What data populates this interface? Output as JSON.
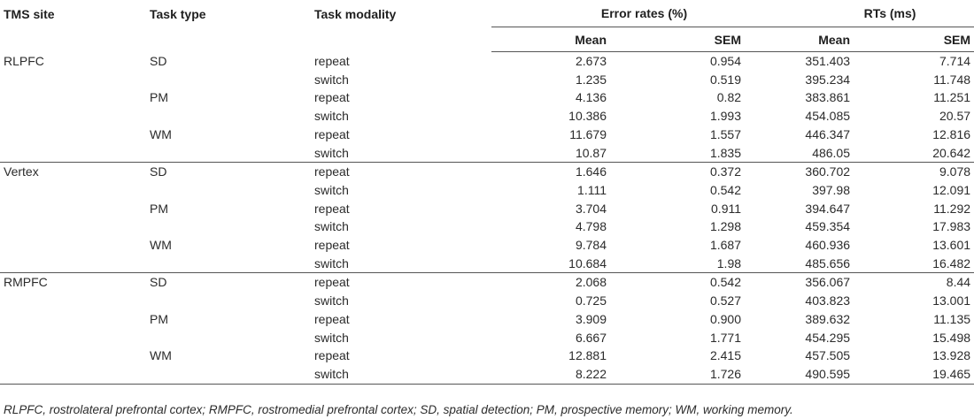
{
  "headers": {
    "tms_site": "TMS site",
    "task_type": "Task type",
    "task_modality": "Task modality",
    "error_rates": "Error rates (%)",
    "rts": "RTs (ms)",
    "mean": "Mean",
    "sem": "SEM"
  },
  "rows": [
    {
      "site": "RLPFC",
      "type": "SD",
      "modality": "repeat",
      "err_mean": "2.673",
      "err_sem": "0.954",
      "rt_mean": "351.403",
      "rt_sem": "7.714"
    },
    {
      "site": "",
      "type": "",
      "modality": "switch",
      "err_mean": "1.235",
      "err_sem": "0.519",
      "rt_mean": "395.234",
      "rt_sem": "11.748"
    },
    {
      "site": "",
      "type": "PM",
      "modality": "repeat",
      "err_mean": "4.136",
      "err_sem": "0.82",
      "rt_mean": "383.861",
      "rt_sem": "11.251"
    },
    {
      "site": "",
      "type": "",
      "modality": "switch",
      "err_mean": "10.386",
      "err_sem": "1.993",
      "rt_mean": "454.085",
      "rt_sem": "20.57"
    },
    {
      "site": "",
      "type": "WM",
      "modality": "repeat",
      "err_mean": "11.679",
      "err_sem": "1.557",
      "rt_mean": "446.347",
      "rt_sem": "12.816"
    },
    {
      "site": "",
      "type": "",
      "modality": "switch",
      "err_mean": "10.87",
      "err_sem": "1.835",
      "rt_mean": "486.05",
      "rt_sem": "20.642"
    },
    {
      "site": "Vertex",
      "type": "SD",
      "modality": "repeat",
      "err_mean": "1.646",
      "err_sem": "0.372",
      "rt_mean": "360.702",
      "rt_sem": "9.078"
    },
    {
      "site": "",
      "type": "",
      "modality": "switch",
      "err_mean": "1.111",
      "err_sem": "0.542",
      "rt_mean": "397.98",
      "rt_sem": "12.091"
    },
    {
      "site": "",
      "type": "PM",
      "modality": "repeat",
      "err_mean": "3.704",
      "err_sem": "0.911",
      "rt_mean": "394.647",
      "rt_sem": "11.292"
    },
    {
      "site": "",
      "type": "",
      "modality": "switch",
      "err_mean": "4.798",
      "err_sem": "1.298",
      "rt_mean": "459.354",
      "rt_sem": "17.983"
    },
    {
      "site": "",
      "type": "WM",
      "modality": "repeat",
      "err_mean": "9.784",
      "err_sem": "1.687",
      "rt_mean": "460.936",
      "rt_sem": "13.601"
    },
    {
      "site": "",
      "type": "",
      "modality": "switch",
      "err_mean": "10.684",
      "err_sem": "1.98",
      "rt_mean": "485.656",
      "rt_sem": "16.482"
    },
    {
      "site": "RMPFC",
      "type": "SD",
      "modality": "repeat",
      "err_mean": "2.068",
      "err_sem": "0.542",
      "rt_mean": "356.067",
      "rt_sem": "8.44"
    },
    {
      "site": "",
      "type": "",
      "modality": "switch",
      "err_mean": "0.725",
      "err_sem": "0.527",
      "rt_mean": "403.823",
      "rt_sem": "13.001"
    },
    {
      "site": "",
      "type": "PM",
      "modality": "repeat",
      "err_mean": "3.909",
      "err_sem": "0.900",
      "rt_mean": "389.632",
      "rt_sem": "11.135"
    },
    {
      "site": "",
      "type": "",
      "modality": "switch",
      "err_mean": "6.667",
      "err_sem": "1.771",
      "rt_mean": "454.295",
      "rt_sem": "15.498"
    },
    {
      "site": "",
      "type": "WM",
      "modality": "repeat",
      "err_mean": "12.881",
      "err_sem": "2.415",
      "rt_mean": "457.505",
      "rt_sem": "13.928"
    },
    {
      "site": "",
      "type": "",
      "modality": "switch",
      "err_mean": "8.222",
      "err_sem": "1.726",
      "rt_mean": "490.595",
      "rt_sem": "19.465"
    }
  ],
  "footnote": "RLPFC, rostrolateral prefrontal cortex; RMPFC, rostromedial prefrontal cortex; SD, spatial detection; PM, prospective memory; WM, working memory."
}
